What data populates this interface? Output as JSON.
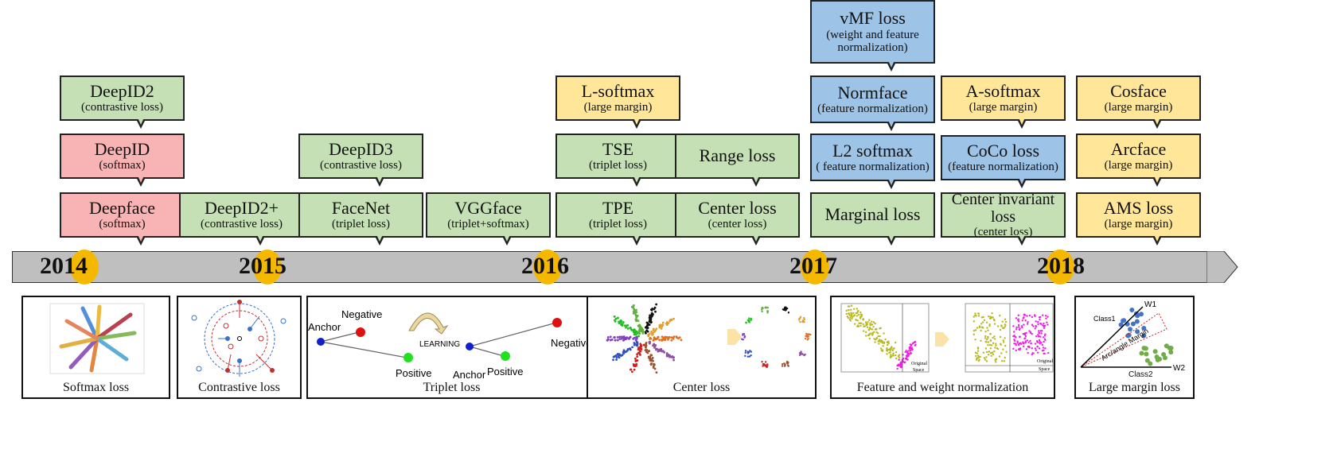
{
  "colors": {
    "softmax": "#f8b4b4",
    "contrastive": "#c5e0b4",
    "margin": "#ffe699",
    "normalization": "#9dc3e6",
    "timeline": "#bfbfbf",
    "year_dot": "#f5b800"
  },
  "boxes": [
    {
      "title": "DeepID2",
      "subtitle": "(contrastive loss)",
      "color": "#c5e0b4"
    },
    {
      "title": "DeepID",
      "subtitle": "(softmax)",
      "color": "#f8b4b4"
    },
    {
      "title": "Deepface",
      "subtitle": "(softmax)",
      "color": "#f8b4b4"
    },
    {
      "title": "DeepID2+",
      "subtitle": "(contrastive loss)",
      "color": "#c5e0b4"
    },
    {
      "title": "DeepID3",
      "subtitle": "(contrastive loss)",
      "color": "#c5e0b4"
    },
    {
      "title": "FaceNet",
      "subtitle": "(triplet loss)",
      "color": "#c5e0b4"
    },
    {
      "title": "VGGface",
      "subtitle": "(triplet+softmax)",
      "color": "#c5e0b4"
    },
    {
      "title": "L-softmax",
      "subtitle": "(large margin)",
      "color": "#ffe699"
    },
    {
      "title": "TSE",
      "subtitle": "(triplet loss)",
      "color": "#c5e0b4"
    },
    {
      "title": "TPE",
      "subtitle": "(triplet loss)",
      "color": "#c5e0b4"
    },
    {
      "title": "Range loss",
      "subtitle": "",
      "color": "#c5e0b4"
    },
    {
      "title": "Center loss",
      "subtitle": "(center loss)",
      "color": "#c5e0b4"
    },
    {
      "title": "vMF loss",
      "subtitle": "(weight and feature normalization)",
      "color": "#9dc3e6"
    },
    {
      "title": "Normface",
      "subtitle": "(feature normalization)",
      "color": "#9dc3e6"
    },
    {
      "title": "L2 softmax",
      "subtitle": "( feature normalization)",
      "color": "#9dc3e6"
    },
    {
      "title": "Marginal loss",
      "subtitle": "",
      "color": "#c5e0b4"
    },
    {
      "title": "A-softmax",
      "subtitle": "(large margin)",
      "color": "#ffe699"
    },
    {
      "title": "CoCo loss",
      "subtitle": "(feature normalization)",
      "color": "#9dc3e6"
    },
    {
      "title": "Center invariant loss",
      "subtitle": "(center loss)",
      "color": "#c5e0b4"
    },
    {
      "title": "Cosface",
      "subtitle": "(large margin)",
      "color": "#ffe699"
    },
    {
      "title": "Arcface",
      "subtitle": "(large margin)",
      "color": "#ffe699"
    },
    {
      "title": "AMS loss",
      "subtitle": "(large margin)",
      "color": "#ffe699"
    }
  ],
  "years": [
    "2014",
    "2015",
    "2016",
    "2017",
    "2018"
  ],
  "panels": {
    "softmax": {
      "caption": "Softmax loss"
    },
    "contrastive": {
      "caption": "Contrastive loss"
    },
    "triplet": {
      "caption": "Triplet loss",
      "negative": "Negative",
      "anchor": "Anchor",
      "positive": "Positive",
      "learning": "LEARNING"
    },
    "center": {
      "caption": "Center loss"
    },
    "normalization": {
      "caption": "Feature and weight normalization",
      "original": "Original",
      "space": "Space"
    },
    "large_margin": {
      "caption": "Large margin loss",
      "class1": "Class1",
      "class2": "Class2",
      "w1": "W1",
      "w2": "W2",
      "margin": "Arc/angle Margin"
    }
  }
}
